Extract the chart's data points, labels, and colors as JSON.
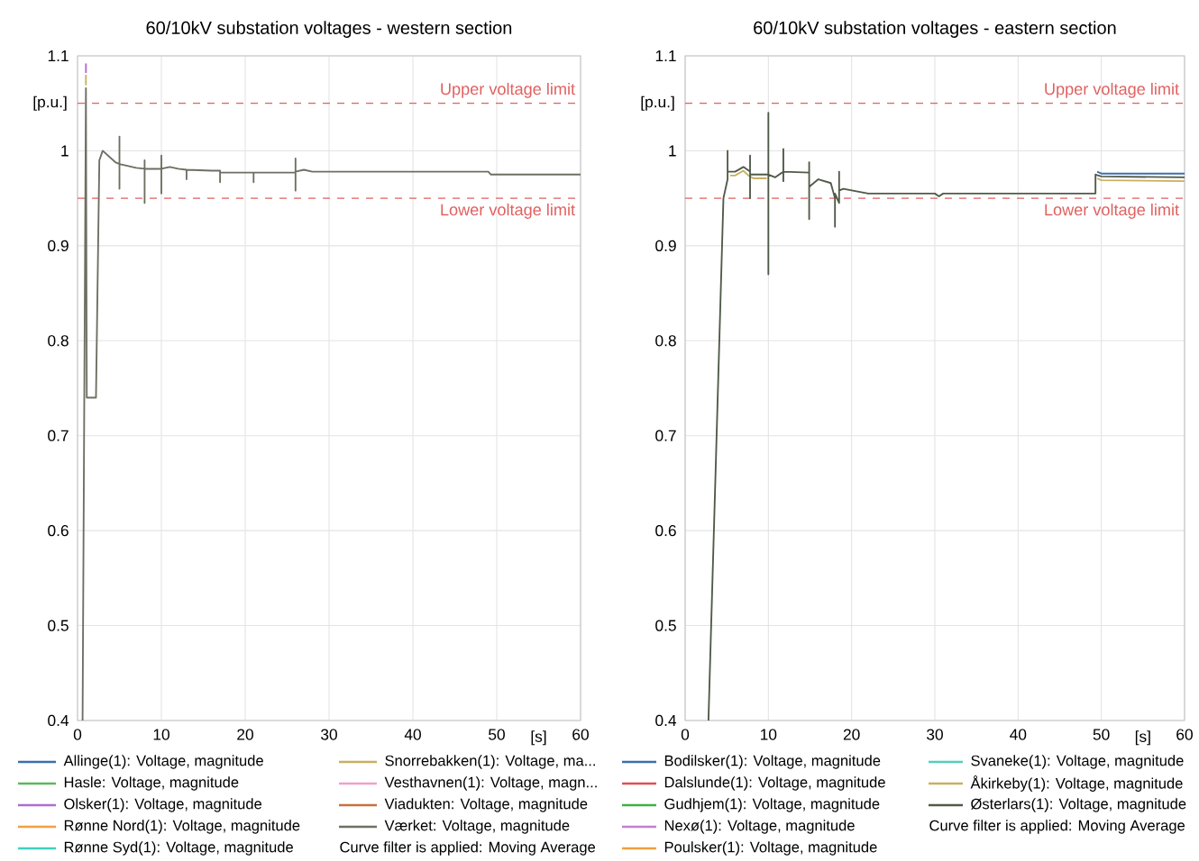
{
  "chart_data": [
    {
      "type": "line",
      "title": "60/10kV substation voltages - western section",
      "xlabel": "[s]",
      "ylabel": "[p.u.]",
      "xlim": [
        0,
        60
      ],
      "ylim": [
        0.4,
        1.1
      ],
      "xticks": [
        0,
        10,
        20,
        30,
        40,
        50,
        60
      ],
      "yticks": [
        0.4,
        0.5,
        0.6,
        0.7,
        0.8,
        0.9,
        1,
        1.1
      ],
      "grid": true,
      "legend": "bottom",
      "annotations": [
        "Curve filter is applied: Moving Average"
      ],
      "ref_lines": [
        {
          "axis": "y",
          "value": 1.05,
          "label": "Upper voltage limit",
          "color": "#e06060",
          "line_style": "dashed"
        },
        {
          "axis": "y",
          "value": 0.95,
          "label": "Lower voltage limit",
          "color": "#e06060",
          "line_style": "dashed"
        }
      ],
      "x": [
        0.6,
        1.0,
        1.1,
        2.2,
        2.6,
        3.0,
        4.5,
        5,
        5,
        5,
        5,
        7,
        8,
        8,
        8,
        8,
        10,
        10,
        10,
        10,
        11,
        12,
        13,
        13,
        13,
        16,
        17,
        17,
        17,
        21,
        21,
        21,
        24,
        26,
        26,
        26,
        26,
        27,
        28,
        49,
        49.3,
        60
      ],
      "series": [
        {
          "name": "Allinge(1): Voltage, magnitude",
          "color": "#3a6fb0",
          "values": [
            null,
            null,
            null,
            null,
            null,
            null,
            null,
            null,
            null,
            null,
            null,
            null,
            null,
            null,
            null,
            null,
            null,
            null,
            null,
            null,
            null,
            null,
            null,
            null,
            null,
            null,
            null,
            null,
            null,
            null,
            null,
            null,
            null,
            null,
            null,
            null,
            null,
            null,
            null,
            null,
            null,
            null
          ]
        },
        {
          "name": "Hasle: Voltage, magnitude",
          "color": "#5cb85c",
          "values": [
            null,
            null,
            null,
            null,
            null,
            null,
            null,
            null,
            null,
            null,
            null,
            null,
            null,
            null,
            null,
            null,
            null,
            null,
            null,
            null,
            null,
            null,
            null,
            null,
            null,
            null,
            null,
            null,
            null,
            null,
            null,
            null,
            null,
            null,
            null,
            null,
            null,
            null,
            null,
            null,
            null,
            null
          ]
        },
        {
          "name": "Olsker(1): Voltage, magnitude",
          "color": "#b06bd0",
          "x": [
            1.0,
            1.0
          ],
          "values": [
            1.082,
            1.092
          ]
        },
        {
          "name": "Rønne Nord(1): Voltage, magnitude",
          "color": "#f0a040",
          "values": [
            null,
            null,
            null,
            null,
            null,
            null,
            null,
            null,
            null,
            null,
            null,
            null,
            null,
            null,
            null,
            null,
            null,
            null,
            null,
            null,
            null,
            null,
            null,
            null,
            null,
            null,
            null,
            null,
            null,
            null,
            null,
            null,
            null,
            null,
            null,
            null,
            null,
            null,
            null,
            null,
            null,
            null
          ]
        },
        {
          "name": "Rønne Syd(1): Voltage, magnitude",
          "color": "#40d0c0",
          "values": [
            null,
            null,
            null,
            null,
            null,
            null,
            null,
            null,
            null,
            null,
            null,
            null,
            null,
            null,
            null,
            null,
            null,
            null,
            null,
            null,
            null,
            null,
            null,
            null,
            null,
            null,
            null,
            null,
            null,
            null,
            null,
            null,
            null,
            null,
            null,
            null,
            null,
            null,
            null,
            null,
            null,
            null
          ]
        },
        {
          "name": "Snorrebakken(1): Voltage, ma...",
          "color": "#c8b060",
          "x": [
            1.0,
            1.0
          ],
          "values": [
            1.069,
            1.08
          ]
        },
        {
          "name": "Vesthavnen(1): Voltage, magn...",
          "color": "#f0a0c8",
          "values": [
            null,
            null,
            null,
            null,
            null,
            null,
            null,
            null,
            null,
            null,
            null,
            null,
            null,
            null,
            null,
            null,
            null,
            null,
            null,
            null,
            null,
            null,
            null,
            null,
            null,
            null,
            null,
            null,
            null,
            null,
            null,
            null,
            null,
            null,
            null,
            null,
            null,
            null,
            null,
            null,
            null,
            null
          ]
        },
        {
          "name": "Viadukten: Voltage, magnitude",
          "color": "#c87040",
          "values": [
            null,
            null,
            null,
            null,
            null,
            null,
            null,
            null,
            null,
            null,
            null,
            null,
            null,
            null,
            null,
            null,
            null,
            null,
            null,
            null,
            null,
            null,
            null,
            null,
            null,
            null,
            null,
            null,
            null,
            null,
            null,
            null,
            null,
            null,
            null,
            null,
            null,
            null,
            null,
            null,
            null,
            null
          ]
        },
        {
          "name": "Værket: Voltage, magnitude",
          "color": "#6e6e62",
          "values": [
            0.4,
            1.066,
            0.74,
            0.74,
            0.99,
            1.0,
            0.988,
            0.986,
            1.015,
            0.96,
            0.986,
            0.982,
            0.981,
            0.99,
            0.945,
            0.981,
            0.981,
            0.995,
            0.955,
            0.981,
            0.983,
            0.981,
            0.98,
            0.97,
            0.98,
            0.979,
            0.979,
            0.967,
            0.977,
            0.977,
            0.967,
            0.977,
            0.977,
            0.977,
            0.992,
            0.958,
            0.978,
            0.98,
            0.978,
            0.978,
            0.975,
            0.975
          ]
        }
      ]
    },
    {
      "type": "line",
      "title": "60/10kV substation voltages - eastern section",
      "xlabel": "[s]",
      "ylabel": "[p.u.]",
      "xlim": [
        0,
        60
      ],
      "ylim": [
        0.4,
        1.1
      ],
      "xticks": [
        0,
        10,
        20,
        30,
        40,
        50,
        60
      ],
      "yticks": [
        0.4,
        0.5,
        0.6,
        0.7,
        0.8,
        0.9,
        1,
        1.1
      ],
      "grid": true,
      "legend": "bottom",
      "annotations": [
        "Curve filter is applied: Moving Average"
      ],
      "ref_lines": [
        {
          "axis": "y",
          "value": 1.05,
          "label": "Upper voltage limit",
          "color": "#e06060",
          "line_style": "dashed"
        },
        {
          "axis": "y",
          "value": 0.95,
          "label": "Lower voltage limit",
          "color": "#e06060",
          "line_style": "dashed"
        }
      ],
      "x": [
        2.8,
        4.6,
        5.1,
        5.1,
        5.1,
        6,
        7,
        7.8,
        7.8,
        7.8,
        7.8,
        10,
        10,
        10,
        10,
        10.8,
        11.8,
        11.8,
        11.8,
        11.8,
        14.9,
        14.9,
        14.9,
        14.9,
        16,
        17.5,
        18,
        18,
        18,
        18.5,
        18.5,
        18.5,
        19,
        22,
        30,
        30.5,
        31,
        49.3,
        49.3,
        50,
        60
      ],
      "series": [
        {
          "name": "Bodilsker(1): Voltage, magnitude",
          "color": "#3a6fb0",
          "x": [
            49.5,
            50,
            60
          ],
          "values": [
            0.978,
            0.976,
            0.976
          ]
        },
        {
          "name": "Dalslunde(1): Voltage, magnitude",
          "color": "#e05050",
          "values": [
            null,
            null,
            null,
            null,
            null,
            null,
            null,
            null,
            null,
            null,
            null,
            null,
            null,
            null,
            null,
            null,
            null,
            null,
            null,
            null,
            null,
            null,
            null,
            null,
            null,
            null,
            null,
            null,
            null,
            null,
            null,
            null,
            null,
            null,
            null,
            null,
            null,
            null,
            null,
            null,
            null
          ]
        },
        {
          "name": "Gudhjem(1): Voltage, magnitude",
          "color": "#40b040",
          "values": [
            null,
            null,
            null,
            null,
            null,
            null,
            null,
            null,
            null,
            null,
            null,
            null,
            null,
            null,
            null,
            null,
            null,
            null,
            null,
            null,
            null,
            null,
            null,
            null,
            null,
            null,
            null,
            null,
            null,
            null,
            null,
            null,
            null,
            null,
            null,
            null,
            null,
            null,
            null,
            null,
            null
          ]
        },
        {
          "name": "Nexø(1): Voltage, magnitude",
          "color": "#c080d0",
          "values": [
            null,
            null,
            null,
            null,
            null,
            null,
            null,
            null,
            null,
            null,
            null,
            null,
            null,
            null,
            null,
            null,
            null,
            null,
            null,
            null,
            null,
            null,
            null,
            null,
            null,
            null,
            null,
            null,
            null,
            null,
            null,
            null,
            null,
            null,
            null,
            null,
            null,
            null,
            null,
            null,
            null
          ]
        },
        {
          "name": "Poulsker(1): Voltage, magnitude",
          "color": "#f0a040",
          "values": [
            null,
            null,
            null,
            null,
            null,
            null,
            null,
            null,
            null,
            null,
            null,
            null,
            null,
            null,
            null,
            null,
            null,
            null,
            null,
            null,
            null,
            null,
            null,
            null,
            null,
            null,
            null,
            null,
            null,
            null,
            null,
            null,
            null,
            null,
            null,
            null,
            null,
            null,
            null,
            null,
            null
          ]
        },
        {
          "name": "Svaneke(1): Voltage, magnitude",
          "color": "#50d0c0",
          "values": [
            null,
            null,
            null,
            null,
            null,
            null,
            null,
            null,
            null,
            null,
            null,
            null,
            null,
            null,
            null,
            null,
            null,
            null,
            null,
            null,
            null,
            null,
            null,
            null,
            null,
            null,
            null,
            null,
            null,
            null,
            null,
            null,
            null,
            null,
            null,
            null,
            null,
            null,
            null,
            null,
            null
          ]
        },
        {
          "name": "Åkirkeby(1): Voltage, magnitude",
          "color": "#c8b060",
          "x": [
            5.4,
            6,
            7,
            7.6,
            8.2,
            9.8,
            9.9,
            49.5,
            50,
            60
          ],
          "values": [
            0.974,
            0.974,
            0.979,
            0.974,
            0.971,
            0.971,
            null,
            0.971,
            0.969,
            0.968
          ]
        },
        {
          "name": "Østerlars(1): Voltage, magnitude",
          "color": "#505a48",
          "values": [
            0.4,
            0.95,
            0.97,
            1.0,
            0.978,
            0.978,
            0.983,
            0.978,
            0.995,
            0.95,
            0.975,
            0.975,
            1.04,
            0.87,
            0.975,
            0.972,
            0.978,
            1.002,
            0.968,
            0.978,
            0.977,
            0.988,
            0.928,
            0.962,
            0.97,
            0.966,
            0.95,
            0.92,
            0.955,
            0.945,
            0.978,
            0.958,
            0.96,
            0.955,
            0.955,
            0.952,
            0.955,
            0.955,
            0.975,
            0.973,
            0.972
          ]
        }
      ]
    }
  ]
}
